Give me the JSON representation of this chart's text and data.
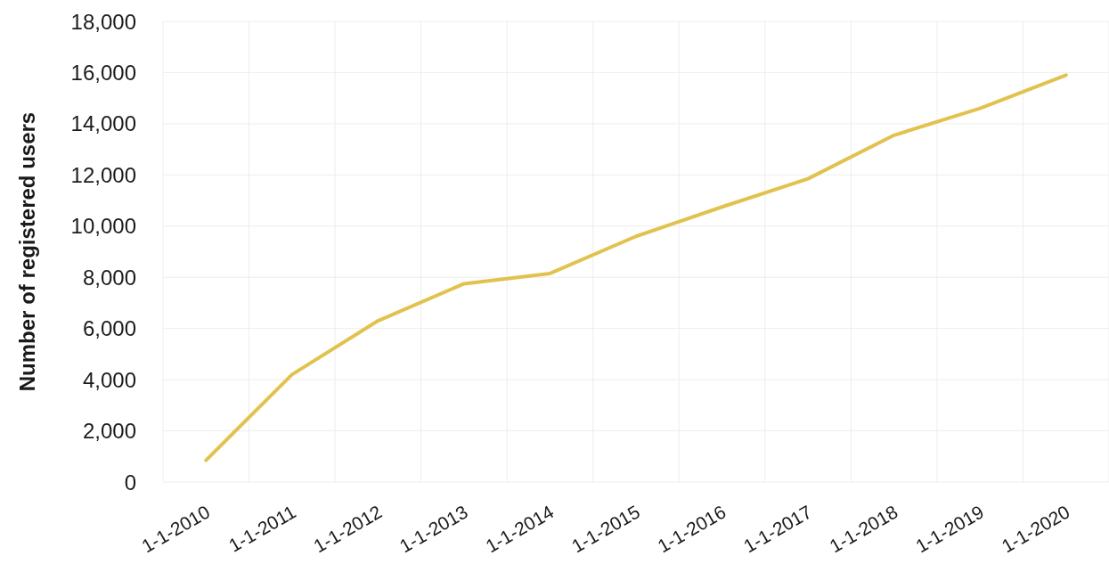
{
  "chart_data": {
    "type": "line",
    "ylabel": "Number of registered users",
    "categories": [
      "1-1-2010",
      "1-1-2011",
      "1-1-2012",
      "1-1-2013",
      "1-1-2014",
      "1-1-2015",
      "1-1-2016",
      "1-1-2017",
      "1-1-2018",
      "1-1-2019",
      "1-1-2020"
    ],
    "values": [
      850,
      4200,
      6300,
      7750,
      8150,
      9600,
      10750,
      11850,
      13550,
      14600,
      15900
    ],
    "color": "#e2c24e",
    "ylim": [
      0,
      18000
    ],
    "yticks": [
      0,
      {
        "value": 2000,
        "label": "2,000"
      },
      {
        "value": 4000,
        "label": "4,000"
      },
      {
        "value": 6000,
        "label": "6,000"
      },
      {
        "value": 8000,
        "label": "8,000"
      },
      {
        "value": 10000,
        "label": "10,000"
      },
      {
        "value": 12000,
        "label": "12,000"
      },
      {
        "value": 14000,
        "label": "14,000"
      },
      {
        "value": 16000,
        "label": "16,000"
      },
      {
        "value": 18000,
        "label": "18,000"
      }
    ],
    "grid": true,
    "marker": "none"
  }
}
